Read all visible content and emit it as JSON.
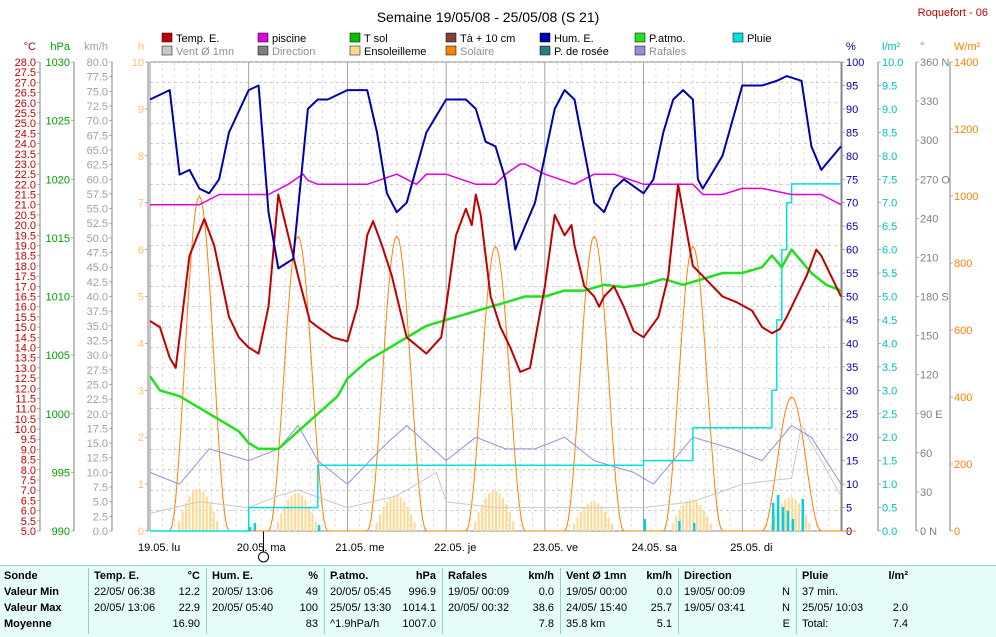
{
  "header": {
    "title": "Semaine 19/05/08 - 25/05/08 (S 21)",
    "station": "Roquefort - 06"
  },
  "legend": [
    {
      "label": "Temp. E.",
      "color": "#c00000"
    },
    {
      "label": "piscine",
      "color": "#e000e0"
    },
    {
      "label": "T sol",
      "color": "#00c000"
    },
    {
      "label": "Tà + 10 cm",
      "color": "#804040"
    },
    {
      "label": "Hum. E.",
      "color": "#0000b0"
    },
    {
      "label": "P.atmo.",
      "color": "#20e020"
    },
    {
      "label": "Pluie",
      "color": "#00e0e0"
    },
    {
      "label": "Vent Ø 1mn",
      "color": "#c8c8c8"
    },
    {
      "label": "Direction",
      "color": "#808080"
    },
    {
      "label": "Ensoleilleme",
      "color": "#ffd890"
    },
    {
      "label": "Solaire",
      "color": "#ff8000"
    },
    {
      "label": "P. de rosée",
      "color": "#208080"
    },
    {
      "label": "Rafales",
      "color": "#9090e0"
    }
  ],
  "chart_data": {
    "type": "line",
    "days": [
      "19.05. lu",
      "20.05. ma",
      "21.05. me",
      "22.05. je",
      "23.05. ve",
      "24.05. sa",
      "25.05. di"
    ],
    "axes": {
      "temp": {
        "unit": "°C",
        "min": 5.0,
        "max": 28.0,
        "step": 0.5,
        "color": "#c00000"
      },
      "press": {
        "unit": "hPa",
        "min": 990,
        "max": 1030,
        "step": 5,
        "color": "#00a000"
      },
      "wind": {
        "unit": "km/h",
        "min": 0,
        "max": 80,
        "step": 2.5,
        "color": "#a0a0a0"
      },
      "sun": {
        "unit": "h",
        "min": 0,
        "max": 10,
        "step": 1,
        "color": "#ffc060"
      },
      "hum": {
        "unit": "%",
        "min": 0,
        "max": 100,
        "step": 5,
        "color": "#0000b0"
      },
      "rain": {
        "unit": "l/m²",
        "min": 0,
        "max": 10,
        "step": 0.5,
        "color": "#00c0c0"
      },
      "dir": {
        "unit": "°",
        "min": 0,
        "max": 360,
        "step": 30,
        "color": "#808080",
        "labels": {
          "0": "N",
          "90": "E",
          "180": "S",
          "270": "O",
          "360": "N"
        }
      },
      "solar": {
        "unit": "W/m²",
        "min": 0,
        "max": 1400,
        "step": 200,
        "color": "#ff8000"
      }
    },
    "series": {
      "temp": {
        "name": "Temp. E.",
        "x": [
          0,
          0.1,
          0.2,
          0.26,
          0.3,
          0.4,
          0.55,
          0.65,
          0.8,
          0.9,
          1.0,
          1.1,
          1.2,
          1.3,
          1.5,
          1.62,
          1.7,
          1.85,
          2.0,
          2.1,
          2.2,
          2.26,
          2.35,
          2.45,
          2.5,
          2.6,
          2.8,
          2.95,
          3.0,
          3.1,
          3.2,
          3.26,
          3.3,
          3.35,
          3.45,
          3.55,
          3.65,
          3.75,
          3.85,
          4.0,
          4.1,
          4.2,
          4.27,
          4.3,
          4.4,
          4.5,
          4.55,
          4.6,
          4.7,
          4.8,
          4.9,
          5.0,
          5.15,
          5.25,
          5.35,
          5.5,
          5.6,
          5.7,
          5.8,
          5.95,
          6.1,
          6.2,
          6.3,
          6.38,
          6.45,
          6.55,
          6.65,
          6.75,
          6.8,
          7.0
        ],
        "y": [
          15.3,
          15.0,
          13.5,
          13.0,
          14.5,
          18.5,
          20.3,
          19.0,
          15.5,
          14.5,
          14.0,
          13.7,
          16.0,
          21.5,
          17.5,
          15.3,
          15.0,
          14.5,
          14.3,
          16.0,
          19.5,
          20.2,
          19.0,
          17.5,
          16.5,
          14.5,
          13.7,
          14.5,
          16.0,
          19.5,
          20.8,
          20.0,
          21.5,
          20.5,
          16.5,
          15.0,
          14.0,
          12.8,
          13.0,
          17.0,
          20.5,
          19.5,
          20.0,
          19.0,
          17.0,
          16.5,
          16.0,
          16.5,
          17.0,
          16.0,
          14.8,
          14.5,
          15.5,
          17.5,
          22.0,
          18.0,
          17.5,
          17.0,
          16.5,
          16.2,
          15.8,
          15.0,
          14.7,
          14.9,
          15.5,
          16.5,
          17.5,
          18.8,
          18.5,
          16.5
        ]
      },
      "pool": {
        "name": "piscine",
        "x": [
          0,
          0.3,
          0.5,
          0.7,
          0.8,
          1.0,
          1.2,
          1.4,
          1.55,
          1.6,
          1.7,
          1.9,
          2.0,
          2.2,
          2.5,
          2.7,
          2.8,
          3.0,
          3.3,
          3.5,
          3.6,
          3.75,
          3.8,
          4.0,
          4.3,
          4.5,
          4.7,
          5.0,
          5.3,
          5.5,
          5.6,
          5.8,
          6.0,
          6.2,
          6.5,
          6.8,
          7.0
        ],
        "y": [
          21.0,
          21.0,
          21.0,
          21.5,
          21.5,
          21.5,
          21.5,
          22.0,
          22.5,
          22.2,
          22.0,
          22.0,
          22.0,
          22.0,
          22.5,
          22.0,
          22.5,
          22.5,
          22.0,
          22.0,
          22.5,
          23.0,
          23.0,
          22.5,
          22.0,
          22.5,
          22.5,
          22.0,
          22.0,
          22.0,
          21.5,
          21.5,
          21.8,
          21.8,
          21.5,
          21.5,
          21.0
        ]
      },
      "hum": {
        "name": "Hum. E.",
        "x": [
          0,
          0.2,
          0.3,
          0.4,
          0.5,
          0.6,
          0.7,
          0.8,
          1.0,
          1.1,
          1.2,
          1.3,
          1.45,
          1.6,
          1.7,
          1.8,
          2.0,
          2.2,
          2.3,
          2.4,
          2.5,
          2.6,
          2.8,
          3.0,
          3.2,
          3.3,
          3.4,
          3.5,
          3.6,
          3.7,
          3.9,
          4.0,
          4.1,
          4.2,
          4.3,
          4.5,
          4.6,
          4.7,
          4.8,
          5.0,
          5.1,
          5.2,
          5.3,
          5.4,
          5.5,
          5.55,
          5.6,
          5.8,
          6.0,
          6.2,
          6.35,
          6.45,
          6.6,
          6.7,
          6.8,
          7.0
        ],
        "y": [
          92,
          94,
          76,
          77,
          73,
          72,
          75,
          85,
          94,
          95,
          68,
          56,
          58,
          90,
          92,
          92,
          94,
          94,
          85,
          72,
          68,
          70,
          85,
          92,
          92,
          90,
          83,
          82,
          75,
          60,
          70,
          80,
          90,
          94,
          92,
          70,
          68,
          73,
          75,
          72,
          75,
          85,
          92,
          94,
          92,
          75,
          73,
          80,
          95,
          95,
          96,
          97,
          96,
          82,
          77,
          82
        ]
      },
      "press": {
        "name": "P.atmo.",
        "x": [
          0,
          0.1,
          0.3,
          0.5,
          0.7,
          0.9,
          1.0,
          1.1,
          1.3,
          1.5,
          1.7,
          1.9,
          2.0,
          2.2,
          2.4,
          2.6,
          2.8,
          3.0,
          3.2,
          3.4,
          3.6,
          3.8,
          4.0,
          4.2,
          4.4,
          4.6,
          4.8,
          5.0,
          5.2,
          5.4,
          5.6,
          5.8,
          6.0,
          6.2,
          6.3,
          6.4,
          6.5,
          6.6,
          6.7,
          6.85,
          7.0
        ],
        "y": [
          1003.2,
          1002.0,
          1001.5,
          1000.5,
          999.5,
          998.5,
          997.5,
          997.0,
          997.0,
          998.5,
          1000.0,
          1001.5,
          1003.0,
          1004.5,
          1005.5,
          1006.5,
          1007.5,
          1008.0,
          1008.5,
          1009.0,
          1009.5,
          1010.0,
          1010.0,
          1010.5,
          1010.5,
          1011.0,
          1010.8,
          1011.0,
          1011.5,
          1011.0,
          1011.5,
          1012.0,
          1012.0,
          1012.5,
          1013.5,
          1012.5,
          1014.0,
          1013.0,
          1012.0,
          1011.0,
          1010.5
        ]
      },
      "rain": {
        "name": "Pluie",
        "x": [
          0,
          0.5,
          0.9,
          1.0,
          1.5,
          1.7,
          2.0,
          3.0,
          4.0,
          4.7,
          5.0,
          5.35,
          5.5,
          6.0,
          6.2,
          6.3,
          6.35,
          6.4,
          6.45,
          6.5,
          6.55,
          7.0
        ],
        "y": [
          0,
          0,
          0,
          0.5,
          0.5,
          1.4,
          1.4,
          1.4,
          1.4,
          1.4,
          1.5,
          1.5,
          2.2,
          2.2,
          2.2,
          3.0,
          4.5,
          6.0,
          7.0,
          7.4,
          7.4,
          7.4
        ]
      },
      "wind": {
        "name": "Vent Ø 1mn",
        "x": [
          0,
          0.5,
          1.0,
          1.3,
          1.5,
          2.0,
          2.5,
          2.9,
          3.0,
          3.5,
          4.0,
          4.5,
          5.0,
          5.5,
          6.0,
          6.5,
          6.6,
          7.0
        ],
        "y": [
          3,
          5,
          4,
          6,
          7,
          4,
          6,
          10,
          5,
          4,
          4,
          4,
          4,
          5,
          8,
          9,
          18,
          6
        ]
      },
      "gust": {
        "name": "Rafales",
        "x": [
          0,
          0.3,
          0.6,
          1.0,
          1.3,
          1.5,
          1.7,
          2.0,
          2.4,
          2.6,
          3.0,
          3.3,
          3.6,
          3.9,
          4.2,
          4.5,
          4.9,
          5.1,
          5.5,
          5.9,
          6.2,
          6.5,
          6.7,
          7.0
        ],
        "y": [
          10,
          8,
          14,
          12,
          14,
          18,
          12,
          8,
          15,
          18,
          12,
          16,
          14,
          14,
          16,
          12,
          10,
          8,
          16,
          14,
          12,
          18,
          16,
          8
        ]
      }
    },
    "stats": [
      {
        "title": "Sonde",
        "unit": "",
        "rows": [
          [
            "Valeur Min",
            "",
            ""
          ],
          [
            "Valeur Max",
            "",
            ""
          ],
          [
            "Moyenne",
            "",
            ""
          ]
        ]
      },
      {
        "title": "Temp. E.",
        "unit": "°C",
        "rows": [
          [
            "22/05/ 06:38",
            "12.2"
          ],
          [
            "20/05/ 13:06",
            "22.9"
          ],
          [
            "",
            "16.90"
          ]
        ]
      },
      {
        "title": "Hum. E.",
        "unit": "%",
        "rows": [
          [
            "20/05/ 13:06",
            "49"
          ],
          [
            "20/05/ 05:40",
            "100"
          ],
          [
            "",
            "83"
          ]
        ]
      },
      {
        "title": "P.atmo.",
        "unit": "hPa",
        "rows": [
          [
            "20/05/ 05:45",
            "996.9"
          ],
          [
            "25/05/ 13:30",
            "1014.1"
          ],
          [
            "^1.9hPa/h",
            "1007.0"
          ]
        ]
      },
      {
        "title": "Rafales",
        "unit": "km/h",
        "rows": [
          [
            "19/05/ 00:09",
            "0.0"
          ],
          [
            "20/05/ 00:32",
            "38.6"
          ],
          [
            "",
            "7.8"
          ]
        ]
      },
      {
        "title": "Vent Ø 1mn",
        "unit": "km/h",
        "rows": [
          [
            "19/05/ 00:00",
            "0.0"
          ],
          [
            "24/05/ 15:40",
            "25.7"
          ],
          [
            "35.8 km",
            "5.1"
          ]
        ]
      },
      {
        "title": "Direction",
        "unit": "",
        "rows": [
          [
            "19/05/ 00:09",
            "N"
          ],
          [
            "19/05/ 03:41",
            "N"
          ],
          [
            "",
            "E"
          ]
        ]
      },
      {
        "title": "Pluie",
        "unit": "l/m²",
        "rows": [
          [
            "37 min.",
            ""
          ],
          [
            "25/05/ 10:03",
            "2.0"
          ],
          [
            "Total:",
            "7.4"
          ]
        ]
      }
    ]
  }
}
